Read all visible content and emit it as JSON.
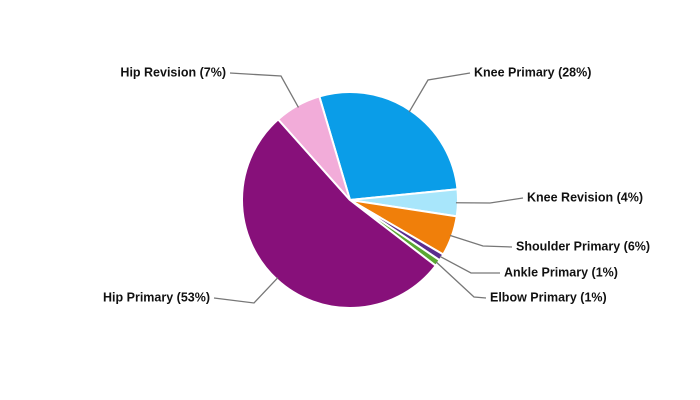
{
  "chart_data": {
    "type": "pie",
    "categories": [
      "Knee Primary (28%)",
      "Knee Revision (4%)",
      "Shoulder Primary (6%)",
      "Ankle Primary (1%)",
      "Elbow Primary (1%)",
      "Hip Primary (53%)",
      "Hip Revision (7%)"
    ],
    "values": [
      28,
      4,
      6,
      1,
      1,
      53,
      7
    ],
    "colors": [
      "#0a9de8",
      "#a8e6fb",
      "#f07f0a",
      "#5b2d8e",
      "#5aa832",
      "#87107a",
      "#f2acd9"
    ]
  }
}
